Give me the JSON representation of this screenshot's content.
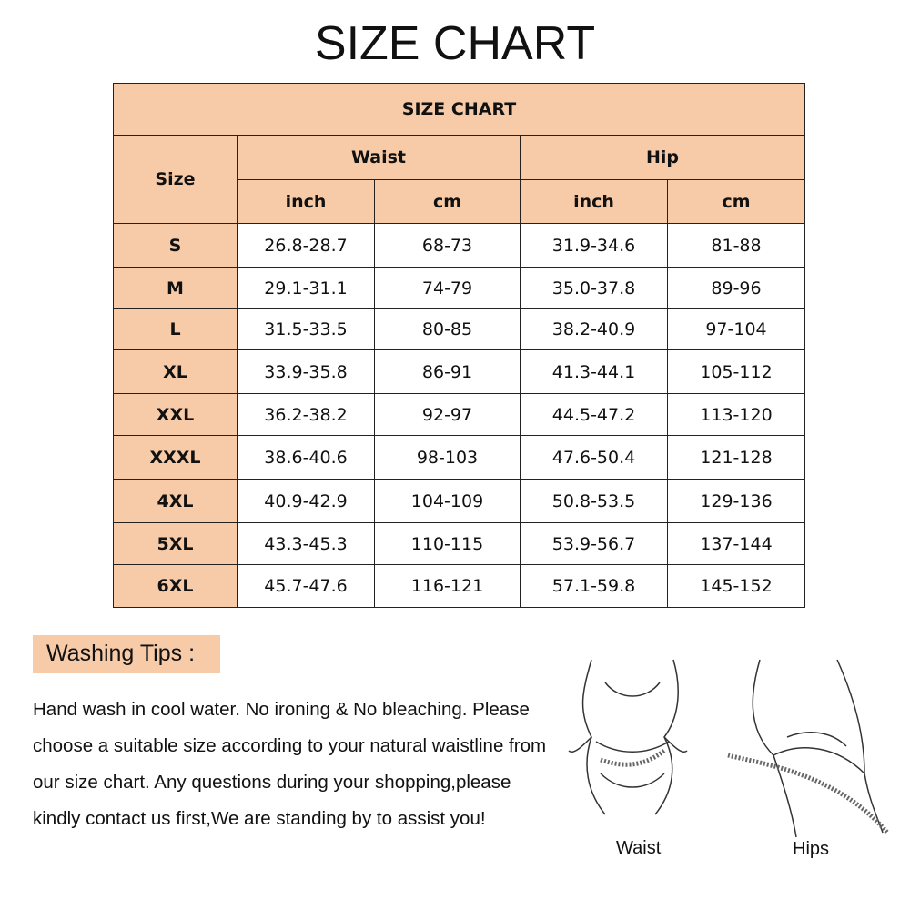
{
  "title": "SIZE CHART",
  "table": {
    "title": "SIZE CHART",
    "size_header": "Size",
    "groups": [
      "Waist",
      "Hip"
    ],
    "units": [
      "inch",
      "cm",
      "inch",
      "cm"
    ],
    "rows": [
      [
        "S",
        "26.8-28.7",
        "68-73",
        "31.9-34.6",
        "81-88"
      ],
      [
        "M",
        "29.1-31.1",
        "74-79",
        "35.0-37.8",
        "89-96"
      ],
      [
        "L",
        "31.5-33.5",
        "80-85",
        "38.2-40.9",
        "97-104"
      ],
      [
        "XL",
        "33.9-35.8",
        "86-91",
        "41.3-44.1",
        "105-112"
      ],
      [
        "XXL",
        "36.2-38.2",
        "92-97",
        "44.5-47.2",
        "113-120"
      ],
      [
        "XXXL",
        "38.6-40.6",
        "98-103",
        "47.6-50.4",
        "121-128"
      ],
      [
        "4XL",
        "40.9-42.9",
        "104-109",
        "50.8-53.5",
        "129-136"
      ],
      [
        "5XL",
        "43.3-45.3",
        "110-115",
        "53.9-56.7",
        "137-144"
      ],
      [
        "6XL",
        "45.7-47.6",
        "116-121",
        "57.1-59.8",
        "145-152"
      ]
    ]
  },
  "tips": {
    "heading": "Washing Tips :",
    "body": "Hand wash in cool water. No ironing & No bleaching. Please choose a suitable size according to your natural waistline from our size chart. Any questions during your shopping,please kindly contact us first,We are standing by to assist you!"
  },
  "illustration": {
    "waist_label": "Waist",
    "hips_label": "Hips"
  },
  "colors": {
    "header_fill": "#f8cba8"
  }
}
